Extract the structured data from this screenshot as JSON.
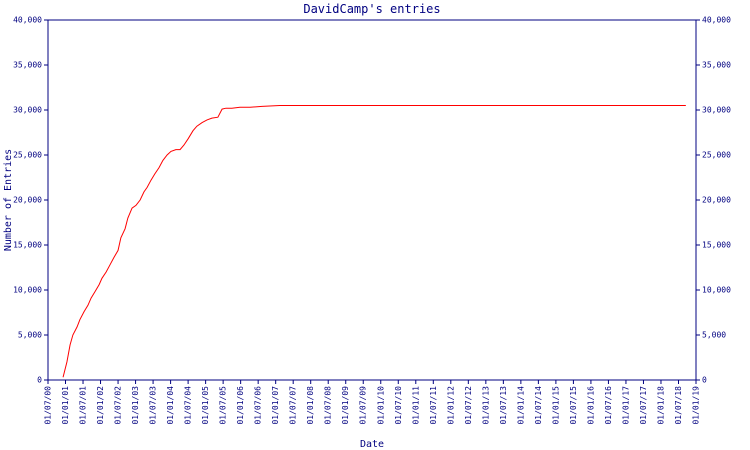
{
  "chart_data": {
    "type": "line",
    "title": "DavidCamp's entries",
    "x_label": "Date",
    "y_label": "Number of Entries",
    "xlim": [
      2000.5,
      2019.0
    ],
    "xticks": [
      {
        "value": 2000.5,
        "label": "01/07/00"
      },
      {
        "value": 2001.0,
        "label": "01/01/01"
      },
      {
        "value": 2001.5,
        "label": "01/07/01"
      },
      {
        "value": 2002.0,
        "label": "01/01/02"
      },
      {
        "value": 2002.5,
        "label": "01/07/02"
      },
      {
        "value": 2003.0,
        "label": "01/01/03"
      },
      {
        "value": 2003.5,
        "label": "01/07/03"
      },
      {
        "value": 2004.0,
        "label": "01/01/04"
      },
      {
        "value": 2004.5,
        "label": "01/07/04"
      },
      {
        "value": 2005.0,
        "label": "01/01/05"
      },
      {
        "value": 2005.5,
        "label": "01/07/05"
      },
      {
        "value": 2006.0,
        "label": "01/01/06"
      },
      {
        "value": 2006.5,
        "label": "01/07/06"
      },
      {
        "value": 2007.0,
        "label": "01/01/07"
      },
      {
        "value": 2007.5,
        "label": "01/07/07"
      },
      {
        "value": 2008.0,
        "label": "01/01/08"
      },
      {
        "value": 2008.5,
        "label": "01/07/08"
      },
      {
        "value": 2009.0,
        "label": "01/01/09"
      },
      {
        "value": 2009.5,
        "label": "01/07/09"
      },
      {
        "value": 2010.0,
        "label": "01/01/10"
      },
      {
        "value": 2010.5,
        "label": "01/07/10"
      },
      {
        "value": 2011.0,
        "label": "01/01/11"
      },
      {
        "value": 2011.5,
        "label": "01/07/11"
      },
      {
        "value": 2012.0,
        "label": "01/01/12"
      },
      {
        "value": 2012.5,
        "label": "01/07/12"
      },
      {
        "value": 2013.0,
        "label": "01/01/13"
      },
      {
        "value": 2013.5,
        "label": "01/07/13"
      },
      {
        "value": 2014.0,
        "label": "01/01/14"
      },
      {
        "value": 2014.5,
        "label": "01/07/14"
      },
      {
        "value": 2015.0,
        "label": "01/01/15"
      },
      {
        "value": 2015.5,
        "label": "01/07/15"
      },
      {
        "value": 2016.0,
        "label": "01/01/16"
      },
      {
        "value": 2016.5,
        "label": "01/07/16"
      },
      {
        "value": 2017.0,
        "label": "01/01/17"
      },
      {
        "value": 2017.5,
        "label": "01/07/17"
      },
      {
        "value": 2018.0,
        "label": "01/01/18"
      },
      {
        "value": 2018.5,
        "label": "01/07/18"
      },
      {
        "value": 2019.0,
        "label": "01/01/19"
      }
    ],
    "ylim": [
      0,
      40000
    ],
    "yticks": [
      0,
      {
        "value": 5000,
        "label": "5,000"
      },
      {
        "value": 10000,
        "label": "10,000"
      },
      {
        "value": 15000,
        "label": "15,000"
      },
      {
        "value": 20000,
        "label": "20,000"
      },
      {
        "value": 25000,
        "label": "25,000"
      },
      {
        "value": 30000,
        "label": "30,000"
      },
      {
        "value": 35000,
        "label": "35,000"
      },
      {
        "value": 40000,
        "label": "40,000"
      }
    ],
    "x": [
      2000.93,
      2001.04,
      2001.13,
      2001.21,
      2001.33,
      2001.41,
      2001.53,
      2001.64,
      2001.73,
      2001.84,
      2001.96,
      2002.04,
      2002.16,
      2002.27,
      2002.38,
      2002.5,
      2002.58,
      2002.7,
      2002.78,
      2002.9,
      2003.01,
      2003.13,
      2003.24,
      2003.33,
      2003.44,
      2003.55,
      2003.67,
      2003.78,
      2003.9,
      2004.01,
      2004.15,
      2004.27,
      2004.38,
      2004.5,
      2004.64,
      2004.75,
      2004.9,
      2005.04,
      2005.18,
      2005.35,
      2005.47,
      2005.58,
      2005.75,
      2005.98,
      2006.27,
      2006.61,
      2007.12,
      2007.69,
      2010.55,
      2013.4,
      2016.26,
      2018.71
    ],
    "series": [
      {
        "color": "#ff0000",
        "values": [
          300,
          2000,
          3900,
          5000,
          5900,
          6700,
          7600,
          8300,
          9100,
          9800,
          10600,
          11300,
          12000,
          12800,
          13600,
          14400,
          15800,
          16800,
          18000,
          19100,
          19400,
          20000,
          20900,
          21400,
          22200,
          22900,
          23600,
          24400,
          25000,
          25400,
          25600,
          25600,
          26100,
          26800,
          27700,
          28200,
          28600,
          28900,
          29100,
          29200,
          30100,
          30200,
          30200,
          30300,
          30300,
          30400,
          30500,
          30500,
          30500,
          30500,
          30500,
          30500
        ]
      }
    ],
    "axis_color": "#000080"
  }
}
